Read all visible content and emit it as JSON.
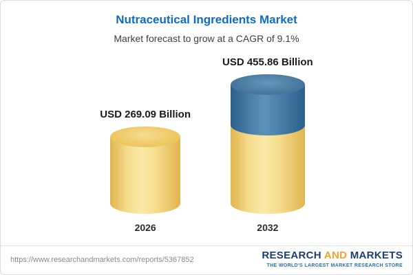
{
  "chart_data": {
    "type": "bar",
    "variant": "cylinder",
    "title": "Nutraceutical Ingredients Market",
    "subtitle": "Market forecast to grow at a CAGR of 9.1%",
    "categories": [
      "2026",
      "2032"
    ],
    "values": [
      269.09,
      455.86
    ],
    "unit": "USD Billion",
    "value_labels": [
      "USD 269.09 Billion",
      "USD 455.86 Billion"
    ],
    "cagr_percent": 9.1,
    "legend": "none",
    "grid": false,
    "colors": {
      "base_segment": "#f2cd68",
      "growth_segment": "#3e74a3",
      "title_text": "#0e6cc2",
      "subtitle_text": "#3d3d3d"
    }
  },
  "footer": {
    "url": "https://www.researchandmarkets.com/reports/5367852",
    "brand": {
      "part1": "RESEARCH",
      "part2": "AND",
      "part3": "MARKETS",
      "tagline": "THE WORLD'S LARGEST MARKET RESEARCH STORE"
    }
  }
}
